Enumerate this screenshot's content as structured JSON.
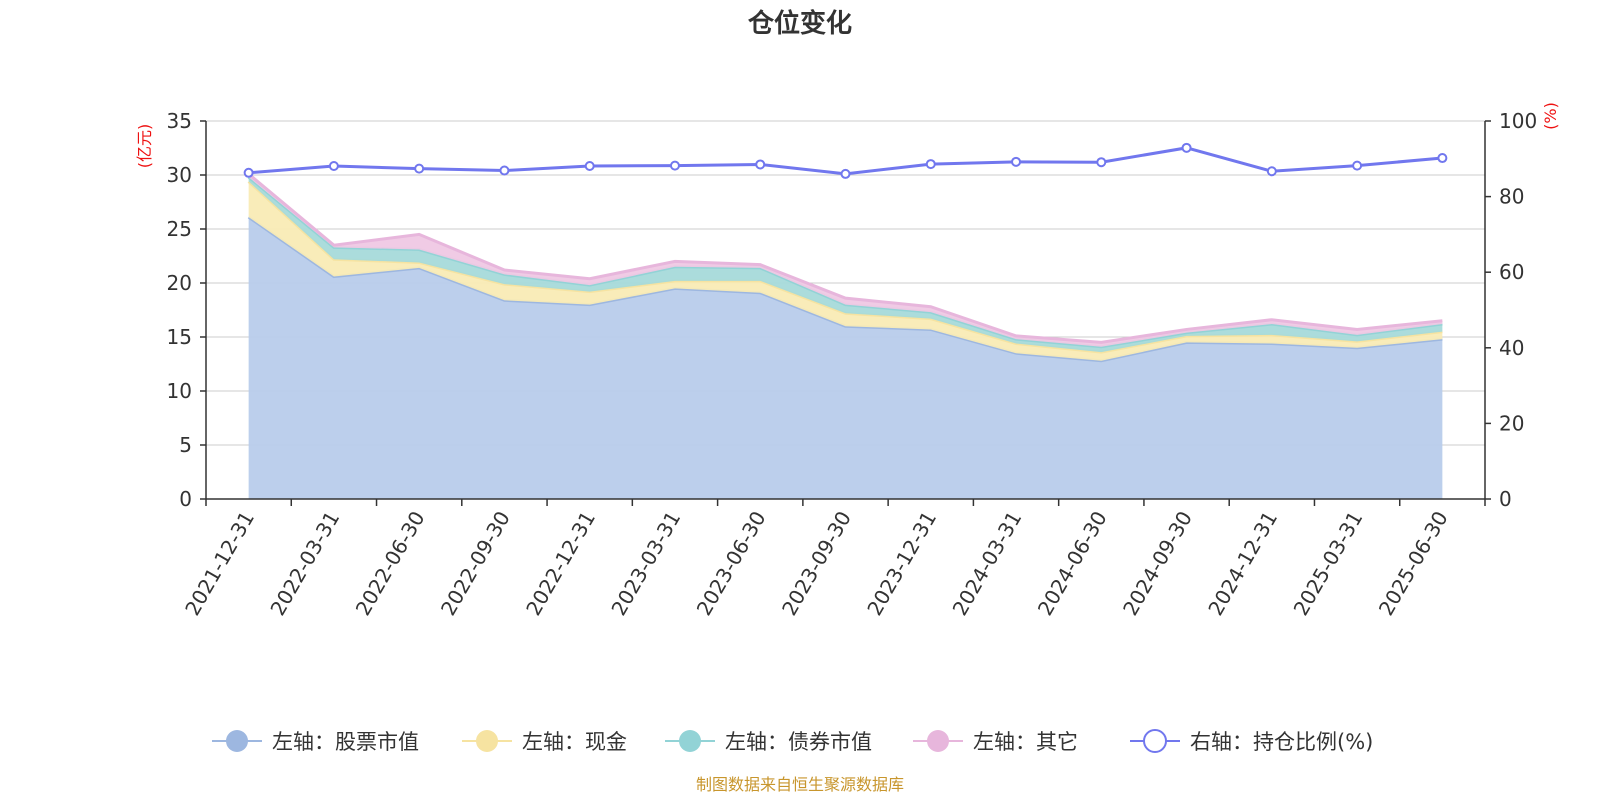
{
  "chart_data": {
    "type": "area",
    "title": "仓位变化",
    "left_unit": "(亿元)",
    "right_unit": "(%)",
    "ylim_left": [
      0,
      35
    ],
    "yticks_left": [
      "0",
      "5",
      "10",
      "15",
      "20",
      "25",
      "30",
      "35"
    ],
    "ylim_right": [
      0,
      100
    ],
    "yticks_right": [
      "0",
      "20",
      "40",
      "60",
      "80",
      "100"
    ],
    "categories": [
      "2021-12-31",
      "2022-03-31",
      "2022-06-30",
      "2022-09-30",
      "2022-12-31",
      "2023-03-31",
      "2023-06-30",
      "2023-09-30",
      "2023-12-31",
      "2024-03-31",
      "2024-06-30",
      "2024-09-30",
      "2024-12-31",
      "2025-03-31",
      "2025-06-30"
    ],
    "grid": true,
    "legend_position": "bottom",
    "series": [
      {
        "name": "左轴：股票市值",
        "axis": "left",
        "stacked": true,
        "color": "#9db7e0",
        "fill": "#b8cceb",
        "values": [
          26.1,
          20.6,
          21.4,
          18.4,
          18.0,
          19.5,
          19.1,
          16.0,
          15.7,
          13.5,
          12.8,
          14.5,
          14.4,
          14.0,
          14.8
        ]
      },
      {
        "name": "左轴：现金",
        "axis": "left",
        "stacked": true,
        "color": "#f6e3a1",
        "fill": "#f9ebb5",
        "values": [
          3.3,
          1.6,
          0.5,
          1.5,
          1.2,
          0.7,
          1.1,
          1.2,
          1.0,
          0.9,
          0.8,
          0.6,
          0.8,
          0.6,
          0.7
        ]
      },
      {
        "name": "左轴：债券市值",
        "axis": "left",
        "stacked": true,
        "color": "#92d3d6",
        "fill": "#a6dada",
        "values": [
          0.4,
          1.1,
          1.2,
          0.9,
          0.6,
          1.3,
          1.2,
          0.8,
          0.6,
          0.4,
          0.5,
          0.3,
          1.0,
          0.6,
          0.7
        ]
      },
      {
        "name": "左轴：其它",
        "axis": "left",
        "stacked": true,
        "color": "#e7b6dc",
        "fill": "#efc8e4",
        "values": [
          0.3,
          0.2,
          1.4,
          0.4,
          0.6,
          0.5,
          0.3,
          0.6,
          0.5,
          0.3,
          0.4,
          0.3,
          0.4,
          0.5,
          0.3
        ]
      },
      {
        "name": "右轴：持仓比例(%)",
        "axis": "right",
        "type": "line",
        "color": "#7177ee",
        "values": [
          86.3,
          88.1,
          87.4,
          86.9,
          88.1,
          88.2,
          88.5,
          86.0,
          88.6,
          89.2,
          89.1,
          92.9,
          86.7,
          88.2,
          90.2
        ]
      }
    ],
    "source": "制图数据来自恒生聚源数据库"
  }
}
